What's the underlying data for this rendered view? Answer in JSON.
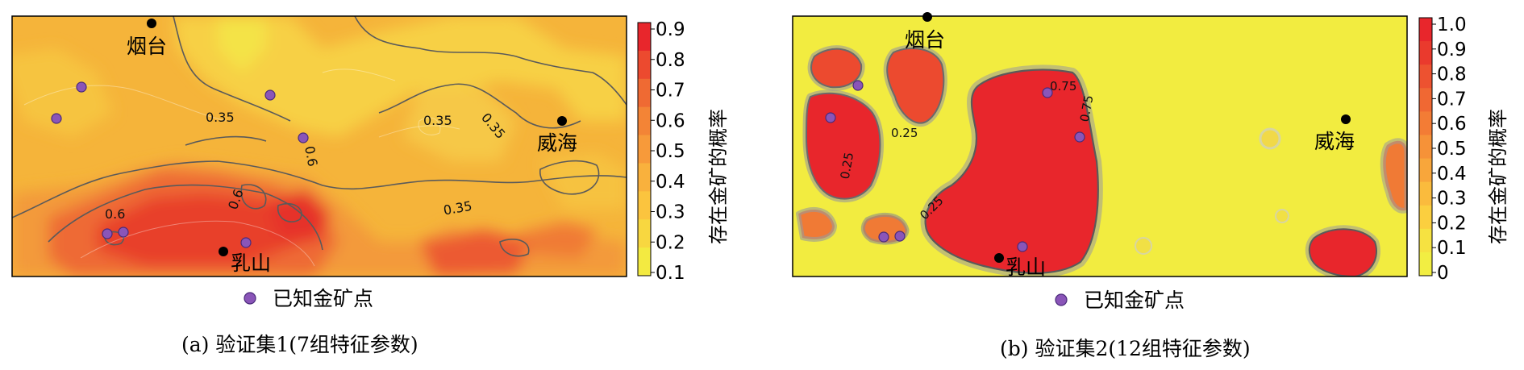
{
  "panels": [
    {
      "caption": "(a) 验证集1(7组特征参数)",
      "colorbar": {
        "title": "存在金矿的概率",
        "ticks": [
          "0.9",
          "0.8",
          "0.7",
          "0.6",
          "0.5",
          "0.4",
          "0.3",
          "0.2",
          "0.1"
        ],
        "colors": [
          "#e8262c",
          "#ec4a2f",
          "#ef6a33",
          "#f38436",
          "#f79a3a",
          "#f9b13d",
          "#fbc43e",
          "#f8d740",
          "#f3ea41"
        ]
      },
      "legend": {
        "label": "已知金矿点"
      },
      "cities": [
        {
          "name": "烟台"
        },
        {
          "name": "威海"
        },
        {
          "name": "乳山"
        }
      ],
      "contour_labels": [
        "0.35",
        "0.35",
        "0.35",
        "0.35",
        "0.6",
        "0.6",
        "0.6"
      ]
    },
    {
      "caption": "(b) 验证集2(12组特征参数)",
      "colorbar": {
        "title": "存在金矿的概率",
        "ticks": [
          "1.0",
          "0.9",
          "0.8",
          "0.7",
          "0.6",
          "0.5",
          "0.4",
          "0.3",
          "0.2",
          "0.1",
          "0"
        ],
        "colors": [
          "#e8262c",
          "#ea3a2d",
          "#ed5230",
          "#f06833",
          "#f37c35",
          "#f69238",
          "#f8a63b",
          "#fabb3d",
          "#fbcf3f",
          "#f6e241",
          "#f2ee42"
        ]
      },
      "legend": {
        "label": "已知金矿点"
      },
      "cities": [
        {
          "name": "烟台"
        },
        {
          "name": "威海"
        },
        {
          "name": "乳山"
        }
      ],
      "contour_labels": [
        "0.25",
        "0.25",
        "0.25",
        "0.75",
        "0.75"
      ]
    }
  ],
  "colors": {
    "mine_point": "#8a55b8",
    "city_point": "#000000",
    "contour_line": "#5a5a5a",
    "frame": "#000000"
  }
}
